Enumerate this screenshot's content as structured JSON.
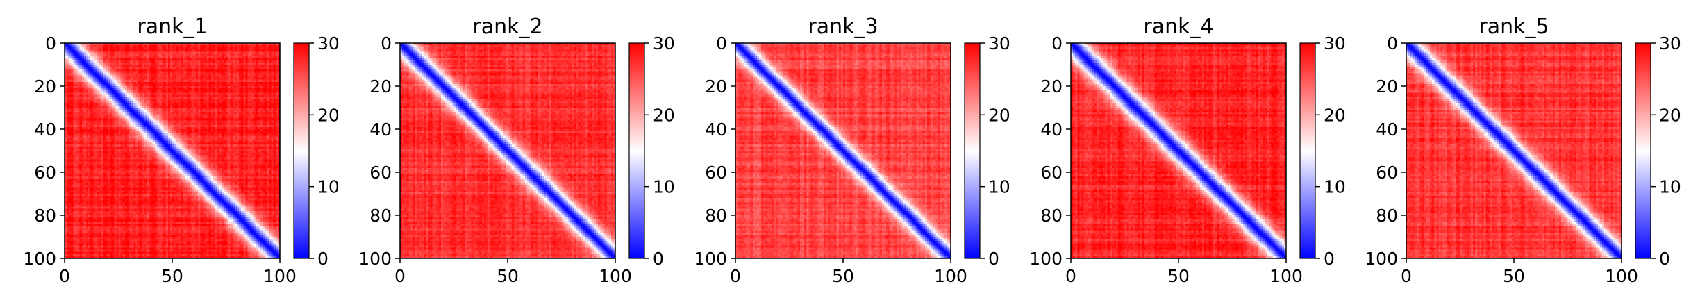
{
  "chart_data": [
    {
      "type": "heatmap",
      "title": "rank_1",
      "xlabel": "",
      "ylabel": "",
      "x_ticks": [
        "0",
        "50",
        "100"
      ],
      "y_ticks": [
        "0",
        "20",
        "40",
        "60",
        "80",
        "100"
      ],
      "xlim": [
        0,
        100
      ],
      "ylim": [
        100,
        0
      ],
      "colorbar": {
        "min": 0,
        "max": 30,
        "ticks": [
          "0",
          "10",
          "20",
          "30"
        ],
        "colormap": "bwr"
      },
      "diagonal_width": 6.5,
      "description_values": {
        "diagonal": 0,
        "far_from_diagonal": 28
      }
    },
    {
      "type": "heatmap",
      "title": "rank_2",
      "xlabel": "",
      "ylabel": "",
      "x_ticks": [
        "0",
        "50",
        "100"
      ],
      "y_ticks": [
        "0",
        "20",
        "40",
        "60",
        "80",
        "100"
      ],
      "xlim": [
        0,
        100
      ],
      "ylim": [
        100,
        0
      ],
      "colorbar": {
        "min": 0,
        "max": 30,
        "ticks": [
          "0",
          "10",
          "20",
          "30"
        ],
        "colormap": "bwr"
      },
      "diagonal_width": 6.0,
      "description_values": {
        "diagonal": 0,
        "far_from_diagonal": 27
      }
    },
    {
      "type": "heatmap",
      "title": "rank_3",
      "xlabel": "",
      "ylabel": "",
      "x_ticks": [
        "0",
        "50",
        "100"
      ],
      "y_ticks": [
        "0",
        "20",
        "40",
        "60",
        "80",
        "100"
      ],
      "xlim": [
        0,
        100
      ],
      "ylim": [
        100,
        0
      ],
      "colorbar": {
        "min": 0,
        "max": 30,
        "ticks": [
          "0",
          "10",
          "20",
          "30"
        ],
        "colormap": "bwr"
      },
      "diagonal_width": 5.5,
      "description_values": {
        "diagonal": 0,
        "far_from_diagonal": 26
      }
    },
    {
      "type": "heatmap",
      "title": "rank_4",
      "xlabel": "",
      "ylabel": "",
      "x_ticks": [
        "0",
        "50",
        "100"
      ],
      "y_ticks": [
        "0",
        "20",
        "40",
        "60",
        "80",
        "100"
      ],
      "xlim": [
        0,
        100
      ],
      "ylim": [
        100,
        0
      ],
      "colorbar": {
        "min": 0,
        "max": 30,
        "ticks": [
          "0",
          "10",
          "20",
          "30"
        ],
        "colormap": "bwr"
      },
      "diagonal_width": 6.5,
      "description_values": {
        "diagonal": 0,
        "far_from_diagonal": 28
      }
    },
    {
      "type": "heatmap",
      "title": "rank_5",
      "xlabel": "",
      "ylabel": "",
      "x_ticks": [
        "0",
        "50",
        "100"
      ],
      "y_ticks": [
        "0",
        "20",
        "40",
        "60",
        "80",
        "100"
      ],
      "xlim": [
        0,
        100
      ],
      "ylim": [
        100,
        0
      ],
      "colorbar": {
        "min": 0,
        "max": 30,
        "ticks": [
          "0",
          "10",
          "20",
          "30"
        ],
        "colormap": "bwr"
      },
      "diagonal_width": 6.0,
      "description_values": {
        "diagonal": 0,
        "far_from_diagonal": 27
      }
    }
  ],
  "colors": {
    "low": "#0000ff",
    "mid": "#ffffff",
    "high": "#ff0000"
  }
}
